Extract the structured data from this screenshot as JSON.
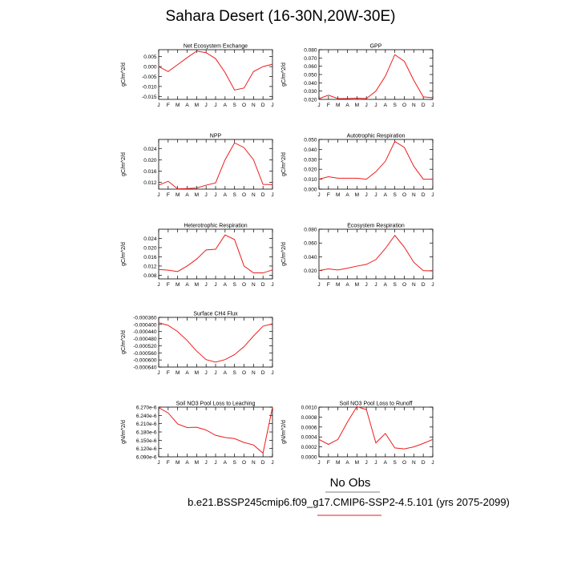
{
  "title": "Sahara Desert (16-30N,20W-30E)",
  "legend": {
    "obs_label": "No Obs",
    "case_label": "b.e21.BSSP245cmip6.f09_g17.CMIP6-SSP2-4.5.101 (yrs 2075-2099)"
  },
  "colors": {
    "line": "#ee1c1c",
    "axis": "#000000"
  },
  "chart_data": [
    {
      "type": "line",
      "title": "Net Ecosystem Exchange",
      "ylabel": "gC/m^2/d",
      "categories": [
        "J",
        "F",
        "M",
        "A",
        "M",
        "J",
        "J",
        "A",
        "S",
        "O",
        "N",
        "D",
        "J"
      ],
      "yticks": [
        "0.005",
        "0.000",
        "-0.005",
        "-0.010",
        "-0.015"
      ],
      "ylim": [
        -0.0165,
        0.0085
      ],
      "values": [
        0.0,
        -0.0025,
        0.001,
        0.0045,
        0.0078,
        0.007,
        0.004,
        -0.003,
        -0.0118,
        -0.0108,
        -0.0025,
        0.0,
        0.0012
      ]
    },
    {
      "type": "line",
      "title": "GPP",
      "ylabel": "gC/m^2/d",
      "categories": [
        "J",
        "F",
        "M",
        "A",
        "M",
        "J",
        "J",
        "A",
        "S",
        "O",
        "N",
        "D",
        "J"
      ],
      "yticks": [
        "0.080",
        "0.070",
        "0.060",
        "0.050",
        "0.040",
        "0.030",
        "0.020"
      ],
      "ylim": [
        0.02,
        0.08
      ],
      "values": [
        0.021,
        0.025,
        0.021,
        0.021,
        0.0215,
        0.021,
        0.03,
        0.048,
        0.074,
        0.066,
        0.043,
        0.023,
        0.022
      ]
    },
    {
      "type": "line",
      "title": "NPP",
      "ylabel": "gC/m^2/d",
      "categories": [
        "J",
        "F",
        "M",
        "A",
        "M",
        "J",
        "J",
        "A",
        "S",
        "O",
        "N",
        "D",
        "J"
      ],
      "yticks": [
        "0.024",
        "0.020",
        "0.016",
        "0.012"
      ],
      "ylim": [
        0.0096,
        0.0272
      ],
      "values": [
        0.011,
        0.0124,
        0.0097,
        0.0098,
        0.01,
        0.011,
        0.0118,
        0.02,
        0.026,
        0.0243,
        0.02,
        0.0113,
        0.0112
      ]
    },
    {
      "type": "line",
      "title": "Autotrophic Respiration",
      "ylabel": "gC/m^2/d",
      "categories": [
        "J",
        "F",
        "M",
        "A",
        "M",
        "J",
        "J",
        "A",
        "S",
        "O",
        "N",
        "D",
        "J"
      ],
      "yticks": [
        "0.050",
        "0.040",
        "0.030",
        "0.020",
        "0.010",
        "0.000"
      ],
      "ylim": [
        0.0,
        0.05
      ],
      "values": [
        0.01,
        0.0125,
        0.011,
        0.011,
        0.011,
        0.01,
        0.0175,
        0.028,
        0.048,
        0.042,
        0.023,
        0.01,
        0.01
      ]
    },
    {
      "type": "line",
      "title": "Heterotrophic Respiration",
      "ylabel": "gC/m^2/d",
      "categories": [
        "J",
        "F",
        "M",
        "A",
        "M",
        "J",
        "J",
        "A",
        "S",
        "O",
        "N",
        "D",
        "J"
      ],
      "yticks": [
        "0.024",
        "0.020",
        "0.016",
        "0.012",
        "0.008"
      ],
      "ylim": [
        0.0064,
        0.028
      ],
      "values": [
        0.0105,
        0.0102,
        0.0096,
        0.012,
        0.015,
        0.019,
        0.0193,
        0.0255,
        0.0235,
        0.012,
        0.009,
        0.009,
        0.0103
      ]
    },
    {
      "type": "line",
      "title": "Ecosystem Respiration",
      "ylabel": "gC/m^2/d",
      "categories": [
        "J",
        "F",
        "M",
        "A",
        "M",
        "J",
        "J",
        "A",
        "S",
        "O",
        "N",
        "D",
        "J"
      ],
      "yticks": [
        "0.080",
        "0.060",
        "0.040",
        "0.020"
      ],
      "ylim": [
        0.008,
        0.08
      ],
      "values": [
        0.02,
        0.0225,
        0.021,
        0.0235,
        0.0265,
        0.029,
        0.036,
        0.052,
        0.071,
        0.054,
        0.032,
        0.02,
        0.0195
      ]
    },
    {
      "type": "line",
      "title": "Surface CH4 Flux",
      "ylabel": "gC/m^2/d",
      "categories": [
        "J",
        "F",
        "M",
        "A",
        "M",
        "J",
        "J",
        "A",
        "S",
        "O",
        "N",
        "D",
        "J"
      ],
      "yticks": [
        "-0.000360",
        "-0.000400",
        "-0.000440",
        "-0.000480",
        "-0.000520",
        "-0.000560",
        "-0.000600",
        "-0.000640"
      ],
      "ylim": [
        -0.00064,
        -0.00036
      ],
      "values": [
        -0.00039,
        -0.000405,
        -0.00044,
        -0.00049,
        -0.00055,
        -0.000598,
        -0.000612,
        -0.000598,
        -0.00057,
        -0.000525,
        -0.000465,
        -0.00041,
        -0.000396
      ]
    },
    {
      "type": "line",
      "title": "Soil NO3 Pool Loss to Leaching",
      "ylabel": "gN/m^2/d",
      "categories": [
        "J",
        "F",
        "M",
        "A",
        "M",
        "J",
        "J",
        "A",
        "S",
        "O",
        "N",
        "D",
        "J"
      ],
      "yticks": [
        "6.270e-6",
        "6.240e-6",
        "6.210e-6",
        "6.180e-6",
        "6.150e-6",
        "6.120e-6",
        "6.090e-6"
      ],
      "ylim": [
        6.09e-06,
        6.27e-06
      ],
      "values": [
        6.268e-06,
        6.249e-06,
        6.209e-06,
        6.196e-06,
        6.197e-06,
        6.187e-06,
        6.168e-06,
        6.16e-06,
        6.156e-06,
        6.142e-06,
        6.133e-06,
        6.103e-06,
        6.27e-06
      ]
    },
    {
      "type": "line",
      "title": "Soil NO3 Pool Loss to Runoff",
      "ylabel": "gN/m^2/d",
      "categories": [
        "J",
        "F",
        "M",
        "A",
        "M",
        "J",
        "J",
        "A",
        "S",
        "O",
        "N",
        "D",
        "J"
      ],
      "yticks": [
        "0.0010",
        "0.0008",
        "0.0006",
        "0.0004",
        "0.0002",
        "0.0000"
      ],
      "ylim": [
        0.0,
        0.001
      ],
      "values": [
        0.00035,
        0.00025,
        0.00035,
        0.0007,
        0.00101,
        0.00095,
        0.00028,
        0.00047,
        0.00018,
        0.00016,
        0.0002,
        0.00027,
        0.00035
      ]
    }
  ]
}
